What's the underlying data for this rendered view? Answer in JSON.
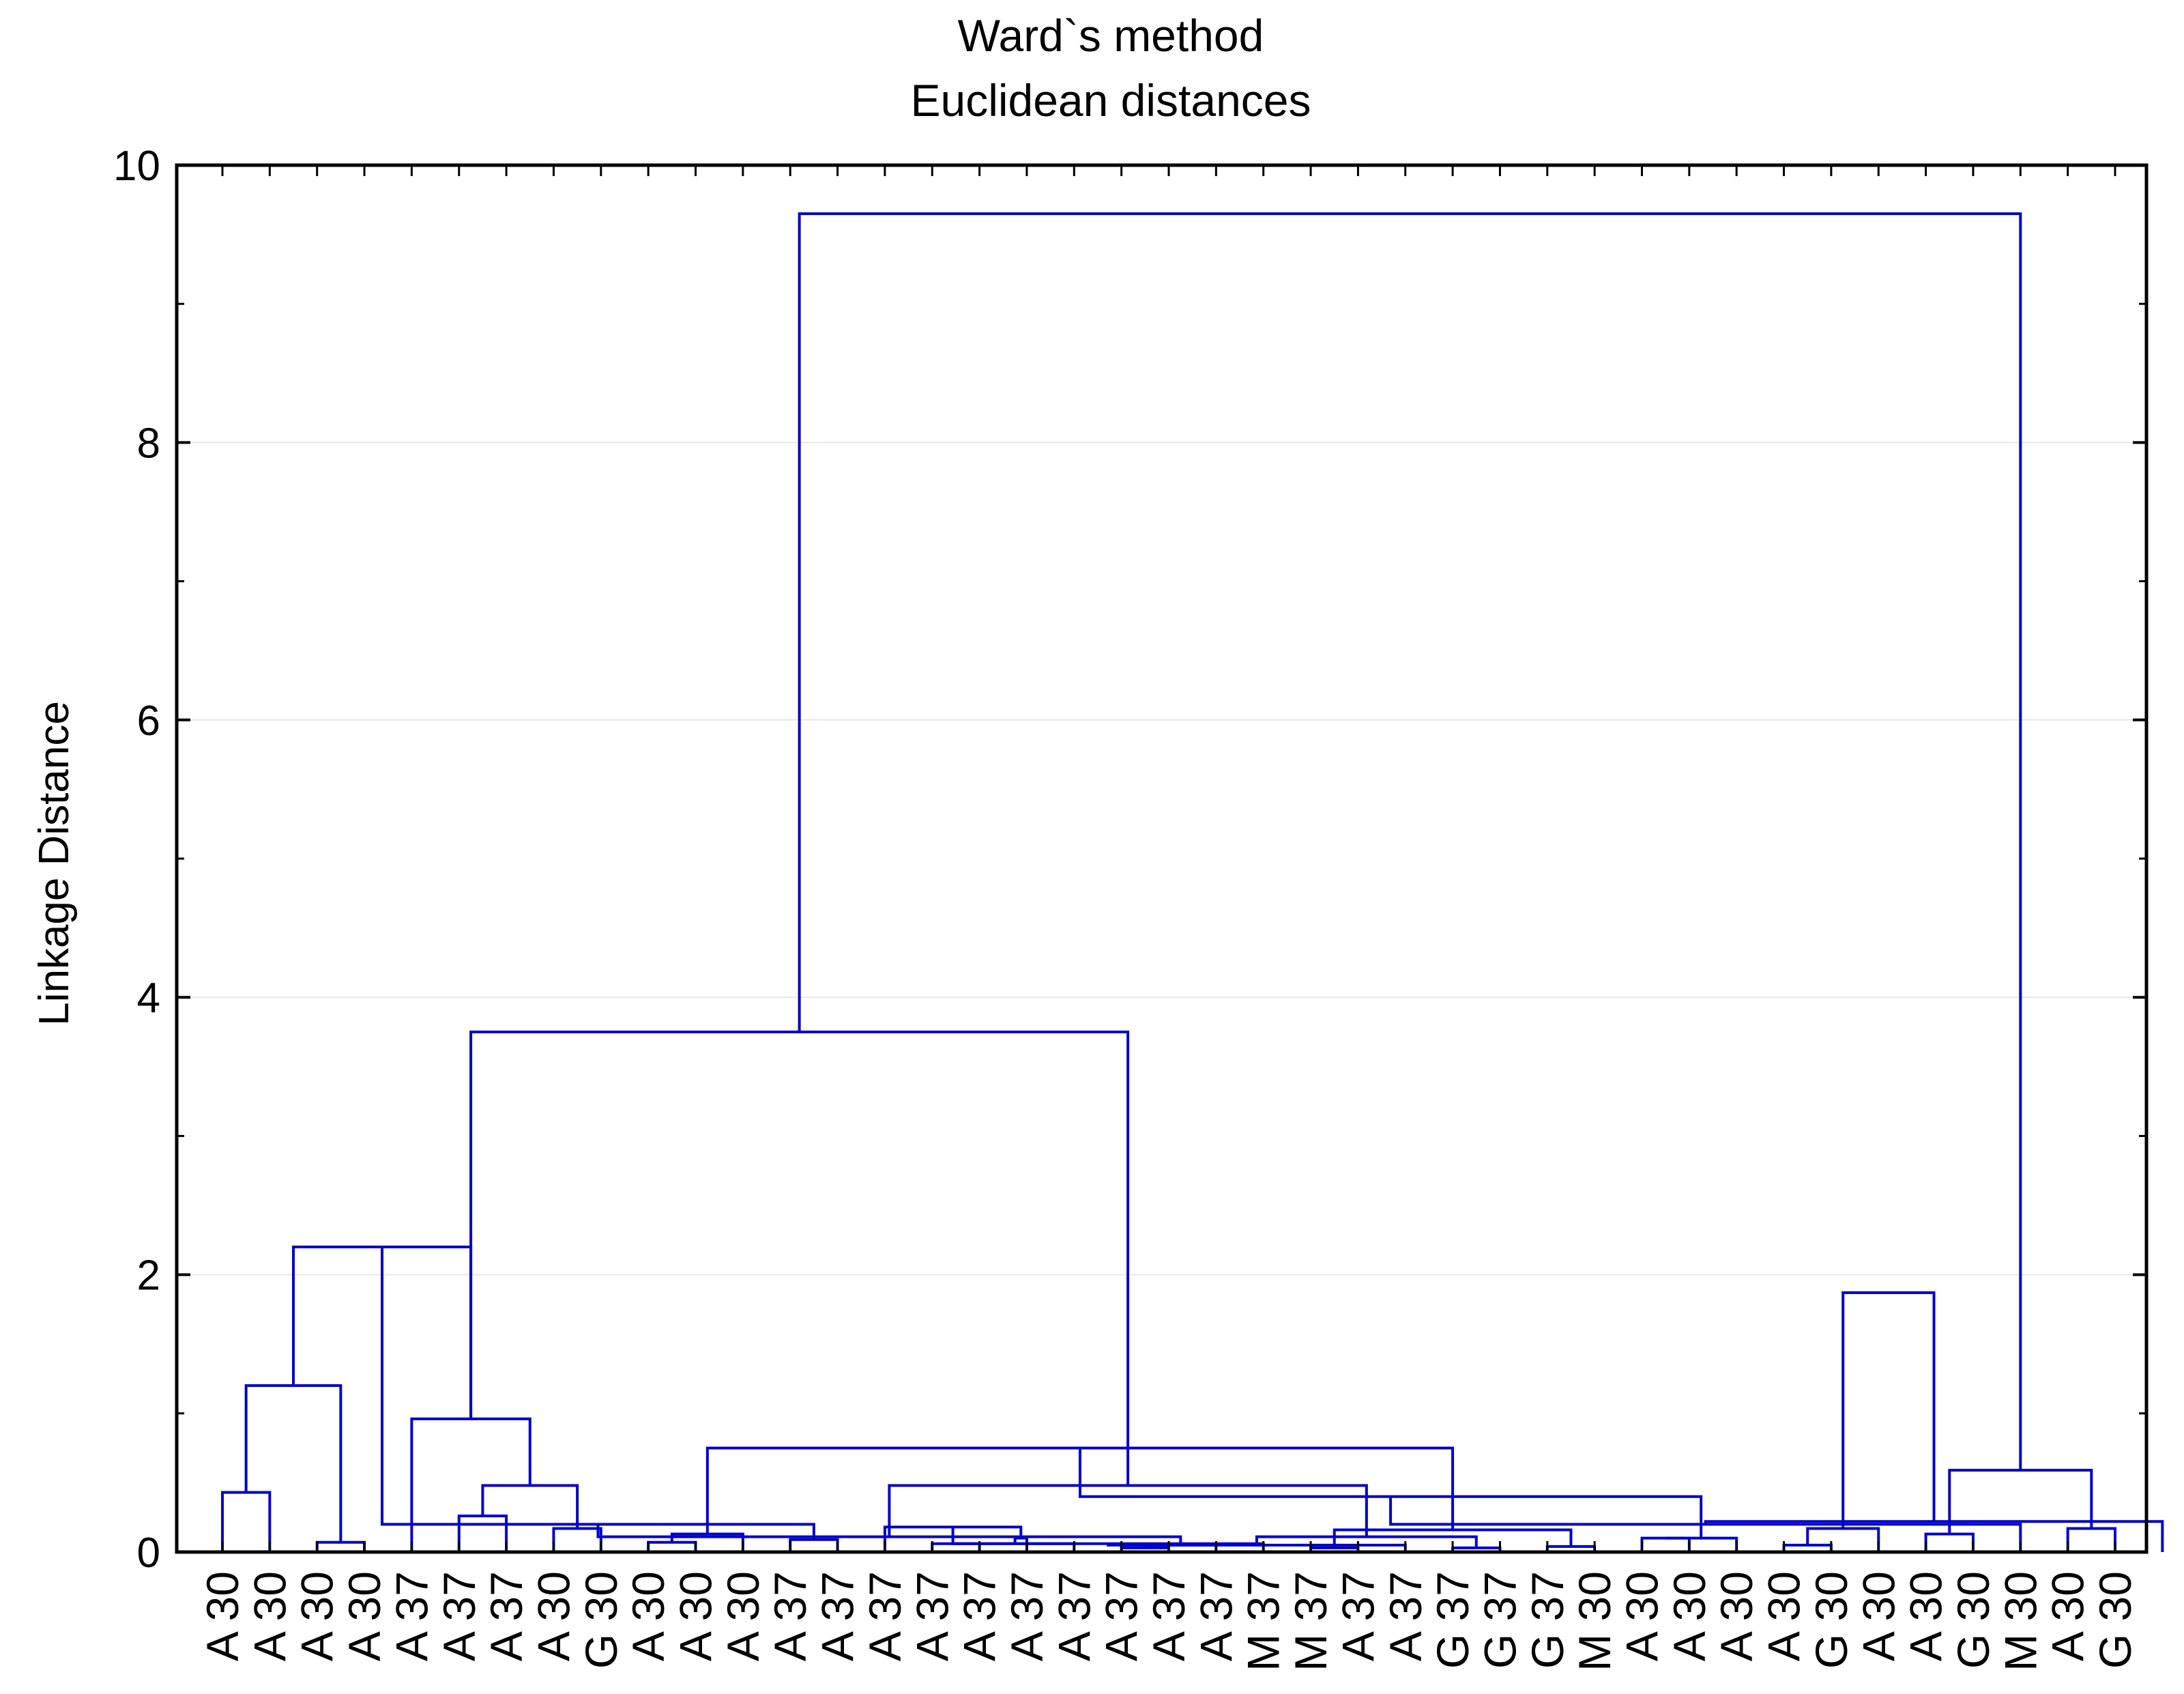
{
  "chart_data": {
    "type": "dendrogram",
    "title": "Ward`s method",
    "subtitle": "Euclidean distances",
    "ylabel": "Linkage Distance",
    "ylim": [
      0,
      10
    ],
    "yticks": [
      0,
      2,
      4,
      6,
      8,
      10
    ],
    "grid": true,
    "line_color": "#0000cc",
    "leaves": [
      "A 30",
      "A 30",
      "A 30",
      "A 30",
      "A 37",
      "A 37",
      "A 37",
      "A 30",
      "G 30",
      "A 30",
      "A 30",
      "A 30",
      "A 37",
      "A 37",
      "A 37",
      "A 37",
      "A 37",
      "A 37",
      "A 37",
      "A 37",
      "A 37",
      "A 37",
      "M 37",
      "M 37",
      "A 37",
      "A 37",
      "G 37",
      "G 37",
      "G 37",
      "M 30",
      "A 30",
      "A 30",
      "A 30",
      "A 30",
      "G 30",
      "A 30",
      "A 30",
      "G 30",
      "M 30",
      "A 30",
      "G 30"
    ],
    "merges": [
      [
        0,
        1,
        0.43
      ],
      [
        2,
        3,
        0.07
      ],
      [
        -1,
        -2,
        1.2
      ],
      [
        5,
        6,
        0.26
      ],
      [
        7,
        8,
        0.17
      ],
      [
        -4,
        -5,
        0.48
      ],
      [
        4,
        -6,
        0.96
      ],
      [
        -3,
        -7,
        2.2
      ],
      [
        9,
        10,
        0.07
      ],
      [
        12,
        13,
        0.09
      ],
      [
        11,
        -9,
        0.13
      ],
      [
        -8,
        -10,
        0.2
      ],
      [
        15,
        16,
        0.06
      ],
      [
        19,
        20,
        0.03
      ],
      [
        18,
        -13,
        0.06
      ],
      [
        -14,
        21,
        0.05
      ],
      [
        17,
        -15,
        0.1
      ],
      [
        -12,
        -16,
        0.11
      ],
      [
        14,
        -17,
        0.18
      ],
      [
        23,
        24,
        0.03
      ],
      [
        22,
        -19,
        0.06
      ],
      [
        26,
        27,
        0.03
      ],
      [
        25,
        -21,
        0.05
      ],
      [
        28,
        29,
        0.04
      ],
      [
        -22,
        -23,
        0.11
      ],
      [
        -20,
        -24,
        0.16
      ],
      [
        -18,
        -25,
        0.48
      ],
      [
        -11,
        -26,
        0.75
      ],
      [
        -7,
        -27,
        3.75
      ],
      [
        30,
        31,
        0.1
      ],
      [
        33,
        34,
        0.05
      ],
      [
        32,
        -30,
        0.1
      ],
      [
        -31,
        35,
        0.17
      ],
      [
        -28,
        -32,
        0.4
      ],
      [
        36,
        37,
        0.13
      ],
      [
        -34,
        38,
        0.2
      ],
      [
        39,
        40,
        0.17
      ],
      [
        -36,
        41,
        0.22
      ],
      [
        -35,
        -37,
        0.59
      ],
      [
        -33,
        -38,
        1.87
      ],
      [
        -29,
        -39,
        9.65
      ]
    ]
  }
}
